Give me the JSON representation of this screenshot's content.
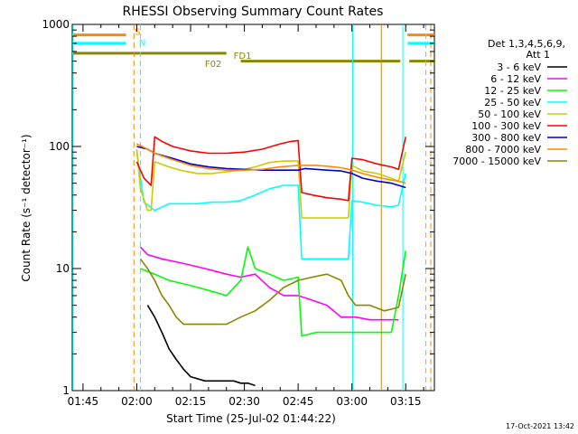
{
  "chart_data": {
    "type": "line",
    "title": "RHESSI Observing Summary Count Rates",
    "xlabel": "Start Time (25-Jul-02 01:44:22)",
    "ylabel": "Count Rate (s⁻¹ detector⁻¹)",
    "yscale": "log",
    "ylim": [
      1,
      1000
    ],
    "xlim_minutes": [
      -3,
      98
    ],
    "x_ticks": [
      {
        "label": "01:45",
        "minute": 0
      },
      {
        "label": "02:00",
        "minute": 15
      },
      {
        "label": "02:15",
        "minute": 30
      },
      {
        "label": "02:30",
        "minute": 45
      },
      {
        "label": "02:45",
        "minute": 60
      },
      {
        "label": "03:00",
        "minute": 75
      },
      {
        "label": "03:15",
        "minute": 90
      }
    ],
    "y_ticks": [
      {
        "label": "1",
        "value": 1
      },
      {
        "label": "10",
        "value": 10
      },
      {
        "label": "100",
        "value": 100
      },
      {
        "label": "1000",
        "value": 1000
      }
    ],
    "legend_header": [
      "Det 1,3,4,5,6,9,",
      "Att 1"
    ],
    "legend_position": "right",
    "series": [
      {
        "name": "3 - 6 keV",
        "color": "#000000",
        "values": [
          [
            18,
            5
          ],
          [
            20,
            4
          ],
          [
            22,
            3
          ],
          [
            24,
            2.2
          ],
          [
            26,
            1.8
          ],
          [
            28,
            1.5
          ],
          [
            30,
            1.3
          ],
          [
            34,
            1.2
          ],
          [
            38,
            1.2
          ],
          [
            42,
            1.2
          ],
          [
            44,
            1.15
          ],
          [
            46,
            1.15
          ],
          [
            48,
            1.1
          ]
        ]
      },
      {
        "name": "6 - 12 keV",
        "color": "#ff00ff",
        "values": [
          [
            16,
            15
          ],
          [
            18,
            13
          ],
          [
            22,
            12
          ],
          [
            28,
            11
          ],
          [
            34,
            10
          ],
          [
            40,
            9
          ],
          [
            44,
            8.5
          ],
          [
            48,
            9
          ],
          [
            52,
            7
          ],
          [
            56,
            6
          ],
          [
            60,
            6
          ],
          [
            64,
            5.5
          ],
          [
            68,
            5
          ],
          [
            72,
            4
          ],
          [
            76,
            4
          ],
          [
            80,
            3.8
          ],
          [
            84,
            3.8
          ],
          [
            88,
            3.8
          ]
        ]
      },
      {
        "name": "12 - 25 keV",
        "color": "#00ff00",
        "values": [
          [
            16,
            10
          ],
          [
            20,
            9
          ],
          [
            24,
            8
          ],
          [
            28,
            7.5
          ],
          [
            32,
            7
          ],
          [
            36,
            6.5
          ],
          [
            40,
            6
          ],
          [
            44,
            8
          ],
          [
            46,
            15
          ],
          [
            48,
            10
          ],
          [
            52,
            9
          ],
          [
            56,
            8
          ],
          [
            60,
            8.5
          ],
          [
            61,
            2.8
          ],
          [
            65,
            3
          ],
          [
            68,
            3
          ],
          [
            72,
            3
          ],
          [
            74,
            3
          ],
          [
            76,
            3
          ],
          [
            80,
            3
          ],
          [
            84,
            3
          ],
          [
            86,
            3
          ],
          [
            88,
            6
          ],
          [
            90,
            14
          ]
        ]
      },
      {
        "name": "25 - 50 keV",
        "color": "#00ffff",
        "values": [
          [
            15,
            90
          ],
          [
            17,
            35
          ],
          [
            20,
            30
          ],
          [
            24,
            34
          ],
          [
            28,
            34
          ],
          [
            32,
            34
          ],
          [
            36,
            35
          ],
          [
            40,
            35
          ],
          [
            44,
            36
          ],
          [
            48,
            40
          ],
          [
            52,
            45
          ],
          [
            56,
            48
          ],
          [
            60,
            48
          ],
          [
            61,
            12
          ],
          [
            64,
            12
          ],
          [
            68,
            12
          ],
          [
            72,
            12
          ],
          [
            74,
            12
          ],
          [
            75,
            36
          ],
          [
            78,
            35
          ],
          [
            82,
            33
          ],
          [
            86,
            32
          ],
          [
            88,
            33
          ],
          [
            90,
            60
          ]
        ]
      },
      {
        "name": "50 - 100 keV",
        "color": "#cccc00",
        "values": [
          [
            15,
            95
          ],
          [
            16,
            45
          ],
          [
            18,
            30
          ],
          [
            19,
            30
          ],
          [
            20,
            75
          ],
          [
            24,
            68
          ],
          [
            28,
            63
          ],
          [
            32,
            60
          ],
          [
            36,
            60
          ],
          [
            40,
            62
          ],
          [
            44,
            64
          ],
          [
            48,
            68
          ],
          [
            52,
            74
          ],
          [
            56,
            76
          ],
          [
            60,
            76
          ],
          [
            61,
            26
          ],
          [
            64,
            26
          ],
          [
            68,
            26
          ],
          [
            72,
            26
          ],
          [
            74,
            26
          ],
          [
            75,
            70
          ],
          [
            78,
            63
          ],
          [
            82,
            60
          ],
          [
            86,
            55
          ],
          [
            88,
            52
          ],
          [
            90,
            90
          ]
        ]
      },
      {
        "name": "100 - 300 keV",
        "color": "#ff0000",
        "values": [
          [
            15,
            75
          ],
          [
            17,
            55
          ],
          [
            19,
            48
          ],
          [
            20,
            120
          ],
          [
            22,
            110
          ],
          [
            25,
            100
          ],
          [
            30,
            92
          ],
          [
            35,
            88
          ],
          [
            40,
            88
          ],
          [
            45,
            90
          ],
          [
            50,
            95
          ],
          [
            55,
            105
          ],
          [
            58,
            110
          ],
          [
            60,
            112
          ],
          [
            61,
            42
          ],
          [
            64,
            40
          ],
          [
            68,
            38
          ],
          [
            72,
            37
          ],
          [
            74,
            36
          ],
          [
            75,
            80
          ],
          [
            78,
            78
          ],
          [
            82,
            72
          ],
          [
            86,
            68
          ],
          [
            88,
            65
          ],
          [
            90,
            120
          ]
        ]
      },
      {
        "name": "300 - 800 keV",
        "color": "#0000cc",
        "values": [
          [
            15,
            100
          ],
          [
            18,
            95
          ],
          [
            20,
            88
          ],
          [
            25,
            80
          ],
          [
            30,
            72
          ],
          [
            35,
            68
          ],
          [
            40,
            66
          ],
          [
            45,
            65
          ],
          [
            50,
            64
          ],
          [
            55,
            64
          ],
          [
            60,
            64
          ],
          [
            62,
            66
          ],
          [
            65,
            65
          ],
          [
            68,
            64
          ],
          [
            72,
            63
          ],
          [
            75,
            60
          ],
          [
            78,
            55
          ],
          [
            82,
            52
          ],
          [
            86,
            50
          ],
          [
            88,
            48
          ],
          [
            90,
            46
          ]
        ]
      },
      {
        "name": "800 - 7000 keV",
        "color": "#ff8800",
        "values": [
          [
            15,
            105
          ],
          [
            18,
            95
          ],
          [
            20,
            88
          ],
          [
            25,
            78
          ],
          [
            30,
            70
          ],
          [
            35,
            66
          ],
          [
            40,
            64
          ],
          [
            45,
            64
          ],
          [
            50,
            65
          ],
          [
            55,
            68
          ],
          [
            60,
            70
          ],
          [
            65,
            70
          ],
          [
            68,
            69
          ],
          [
            72,
            67
          ],
          [
            75,
            64
          ],
          [
            78,
            60
          ],
          [
            82,
            56
          ],
          [
            86,
            53
          ],
          [
            88,
            52
          ],
          [
            90,
            50
          ]
        ]
      },
      {
        "name": "7000 - 15000 keV",
        "color": "#888800",
        "values": [
          [
            16,
            12
          ],
          [
            18,
            10
          ],
          [
            20,
            8
          ],
          [
            22,
            6
          ],
          [
            24,
            5
          ],
          [
            26,
            4
          ],
          [
            28,
            3.5
          ],
          [
            32,
            3.5
          ],
          [
            36,
            3.5
          ],
          [
            40,
            3.5
          ],
          [
            44,
            4
          ],
          [
            48,
            4.5
          ],
          [
            52,
            5.5
          ],
          [
            56,
            7
          ],
          [
            60,
            8
          ],
          [
            64,
            8.5
          ],
          [
            68,
            9
          ],
          [
            72,
            8
          ],
          [
            74,
            6
          ],
          [
            76,
            5
          ],
          [
            80,
            5
          ],
          [
            84,
            4.5
          ],
          [
            88,
            4.8
          ],
          [
            90,
            9
          ]
        ]
      }
    ],
    "annotations": [
      {
        "text": "S",
        "color": "#ff8800"
      },
      {
        "text": "N",
        "color": "#00ffff"
      },
      {
        "text": "FD1",
        "color": "#888800"
      },
      {
        "text": "F02",
        "color": "#888800"
      }
    ],
    "state_bars": [
      {
        "name": "S",
        "color": "#ff8800",
        "value": 820,
        "ranges": [
          [
            -3,
            12
          ],
          [
            90.5,
            98
          ]
        ]
      },
      {
        "name": "N",
        "color": "#00ffff",
        "value": 700,
        "ranges": [
          [
            -3,
            12
          ],
          [
            90.5,
            98
          ]
        ]
      },
      {
        "name": "FD1",
        "color": "#888800",
        "value": 580,
        "ranges": [
          [
            -3,
            40
          ]
        ]
      },
      {
        "name": "F02",
        "color": "#888800",
        "value": 500,
        "ranges": [
          [
            44,
            88.5
          ],
          [
            91,
            98
          ]
        ]
      }
    ],
    "vlines": [
      {
        "minute": -2.8,
        "color": "#00ffff",
        "style": "solid"
      },
      {
        "minute": 14.2,
        "color": "#ff8800",
        "style": "dashed"
      },
      {
        "minute": 16.0,
        "color": "#00ffff",
        "style": "dashed"
      },
      {
        "minute": 75.2,
        "color": "#00ffff",
        "style": "solid"
      },
      {
        "minute": 83.2,
        "color": "#cc8800",
        "style": "solid"
      },
      {
        "minute": 89.2,
        "color": "#00ffff",
        "style": "solid"
      },
      {
        "minute": 95.6,
        "color": "#00ffff",
        "style": "dashed"
      },
      {
        "minute": 97.0,
        "color": "#ff8800",
        "style": "dashed"
      }
    ]
  },
  "footer_timestamp": "17-Oct-2021 13:42"
}
